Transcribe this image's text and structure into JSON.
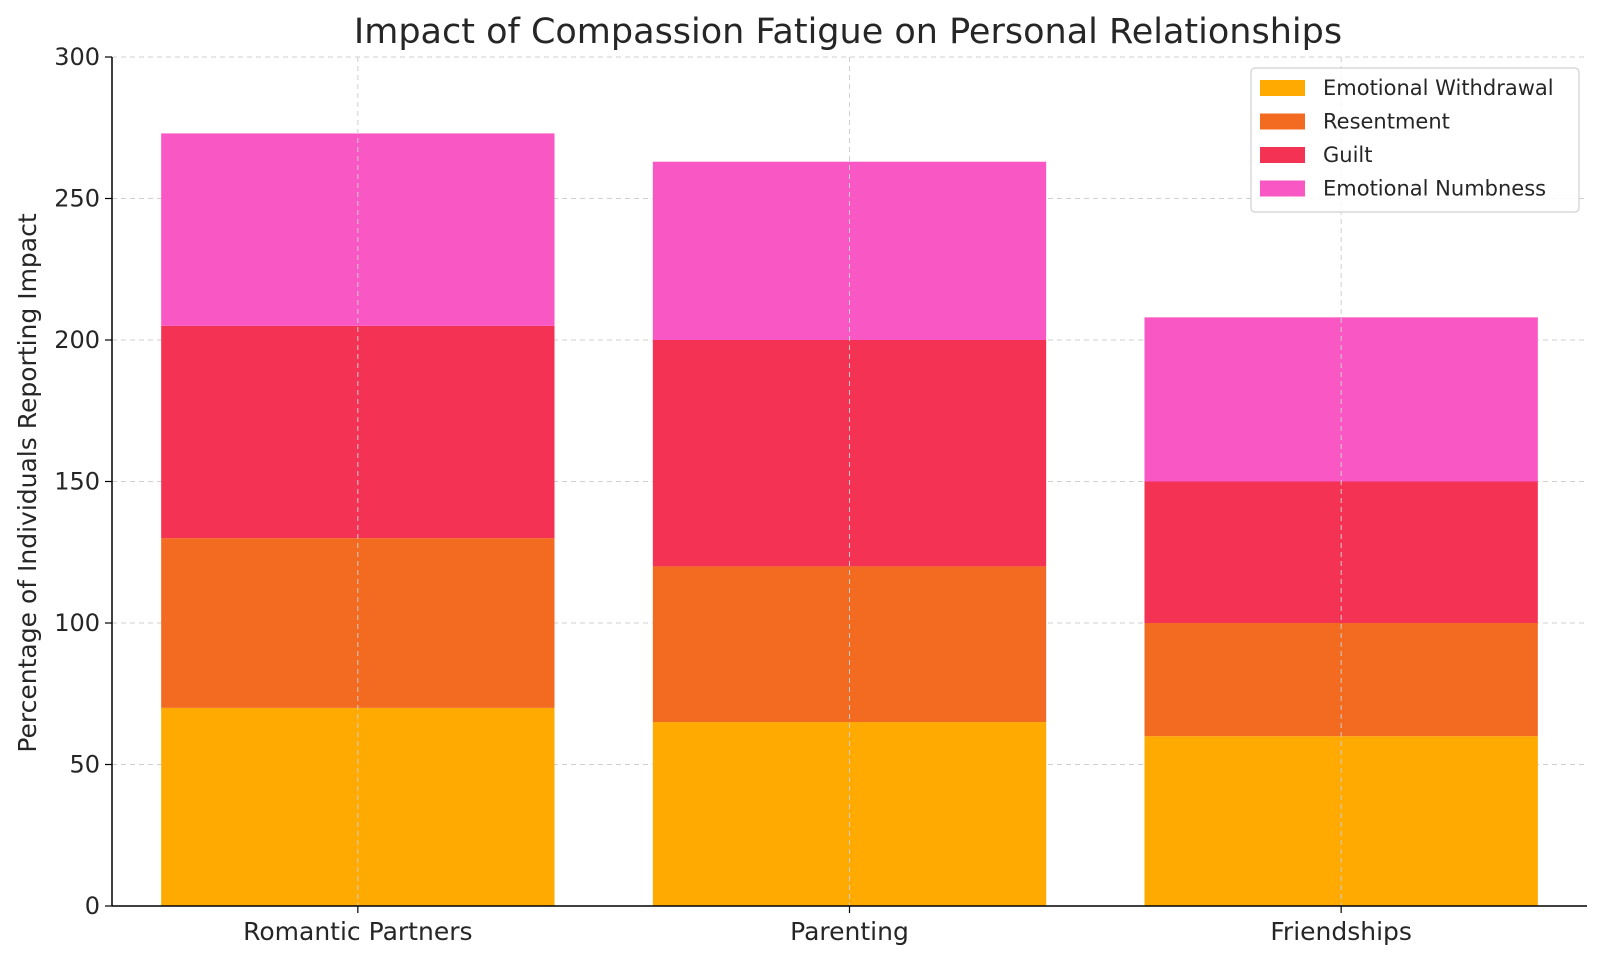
{
  "chart_data": {
    "type": "bar",
    "stacked": true,
    "title": "Impact of Compassion Fatigue on Personal Relationships",
    "xlabel": "",
    "ylabel": "Percentage of Individuals Reporting Impact",
    "categories": [
      "Romantic Partners",
      "Parenting",
      "Friendships"
    ],
    "series": [
      {
        "name": "Emotional Withdrawal",
        "values": [
          70,
          65,
          60
        ],
        "color": "#FFAA00"
      },
      {
        "name": "Resentment",
        "values": [
          60,
          55,
          40
        ],
        "color": "#F26B21"
      },
      {
        "name": "Guilt",
        "values": [
          75,
          80,
          50
        ],
        "color": "#F43254"
      },
      {
        "name": "Emotional Numbness",
        "values": [
          68,
          63,
          58
        ],
        "color": "#F957C3"
      }
    ],
    "ylim": [
      0,
      300
    ],
    "yticks": [
      0,
      50,
      100,
      150,
      200,
      250,
      300
    ],
    "ytick_labels": [
      "0",
      "50",
      "100",
      "150",
      "200",
      "250",
      "300"
    ],
    "grid": true,
    "legend_position": "top-right"
  }
}
